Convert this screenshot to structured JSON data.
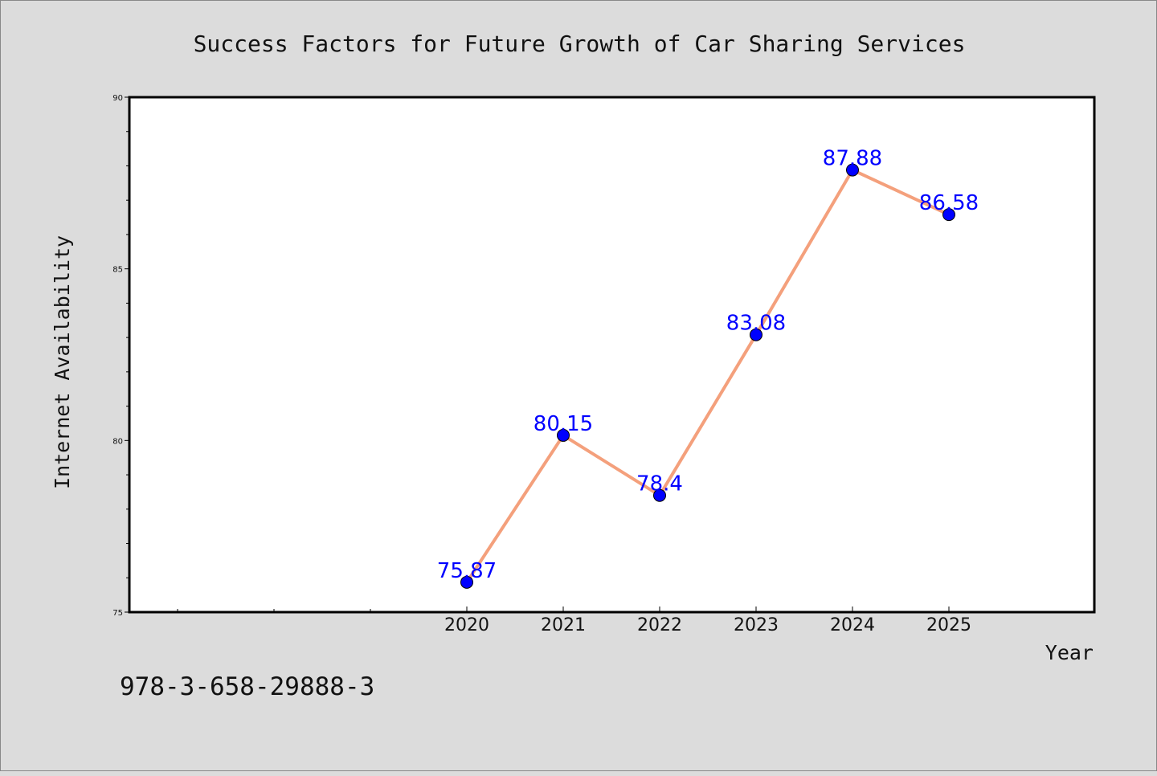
{
  "chart_data": {
    "type": "line",
    "title": "Success Factors for Future Growth of Car Sharing Services",
    "xlabel": "Year",
    "ylabel": "Internet Availability",
    "x": [
      "2020",
      "2021",
      "2022",
      "2023",
      "2024",
      "2025"
    ],
    "series": [
      {
        "values": [
          75.87,
          80.15,
          78.4,
          83.08,
          87.88,
          86.58
        ],
        "labels": [
          "75.87",
          "80.15",
          "78.4",
          "83.08",
          "87.88",
          "86.58"
        ]
      }
    ],
    "ylim": [
      75,
      90
    ],
    "yticks": [
      "75",
      "80",
      "85",
      "90"
    ],
    "grid": false,
    "legend": "none",
    "colors": {
      "line": "#f4a07c",
      "marker": "#0000ff",
      "marker_edge": "#000000",
      "data_label": "#0000ff",
      "plot_background": "#ffffff",
      "figure_background": "#dcdcdc"
    }
  },
  "footer_text": "978-3-658-29888-3"
}
